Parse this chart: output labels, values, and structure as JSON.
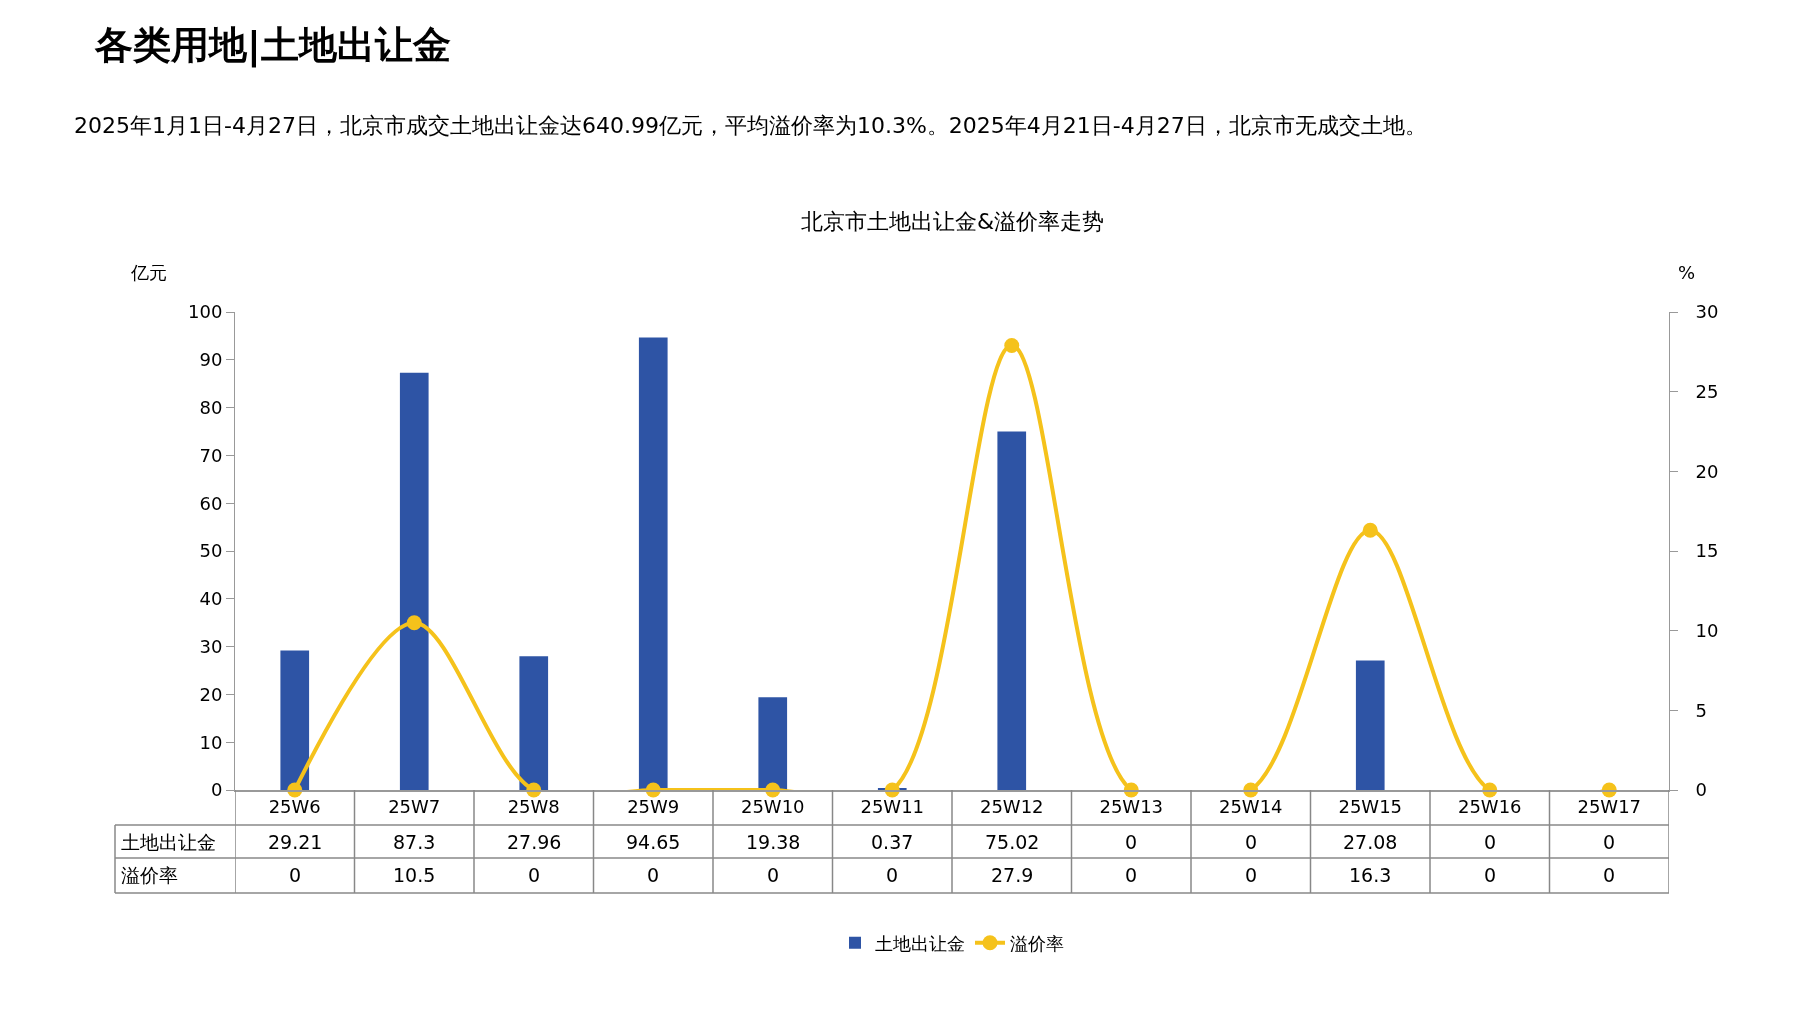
{
  "chart_data": {
    "type": "bar",
    "title": "各类用地|土地出让金",
    "subtitle": "2025年1月1日-4月27日，北京市成交土地出让金达640.99亿元，平均溢价率为10.3%。2025年4月21日-4月27日，北京市无成交土地。",
    "annotations": [
      "北京市土地出让金&溢价率走势"
    ],
    "ylabel": "亿元",
    "y2label": "%",
    "categories": [
      "25W6",
      "25W7",
      "25W8",
      "25W9",
      "25W10",
      "25W11",
      "25W12",
      "25W13",
      "25W14",
      "25W15",
      "25W16",
      "25W17"
    ],
    "series": [
      {
        "name": "土地出让金",
        "color": "#2e54a5",
        "values": [
          29.21,
          87.3,
          27.96,
          94.65,
          19.38,
          0.37,
          75.02,
          0,
          0,
          27.08,
          0,
          0
        ]
      },
      {
        "name": "溢价率",
        "type": "line",
        "axis": "y2",
        "color": "#f5c21b",
        "marker": "circle",
        "values": [
          0,
          10.5,
          0,
          0,
          0,
          0,
          27.9,
          0,
          0,
          16.3,
          0,
          0
        ]
      }
    ],
    "ylim": [
      0,
      100
    ],
    "yticks": [
      0,
      10,
      20,
      30,
      40,
      50,
      60,
      70,
      80,
      90,
      100
    ],
    "y2lim": [
      0,
      30
    ],
    "y2ticks": [
      0,
      5,
      10,
      15,
      20,
      25,
      30
    ],
    "data_labels": true,
    "legend": "bottom",
    "grid": false
  }
}
